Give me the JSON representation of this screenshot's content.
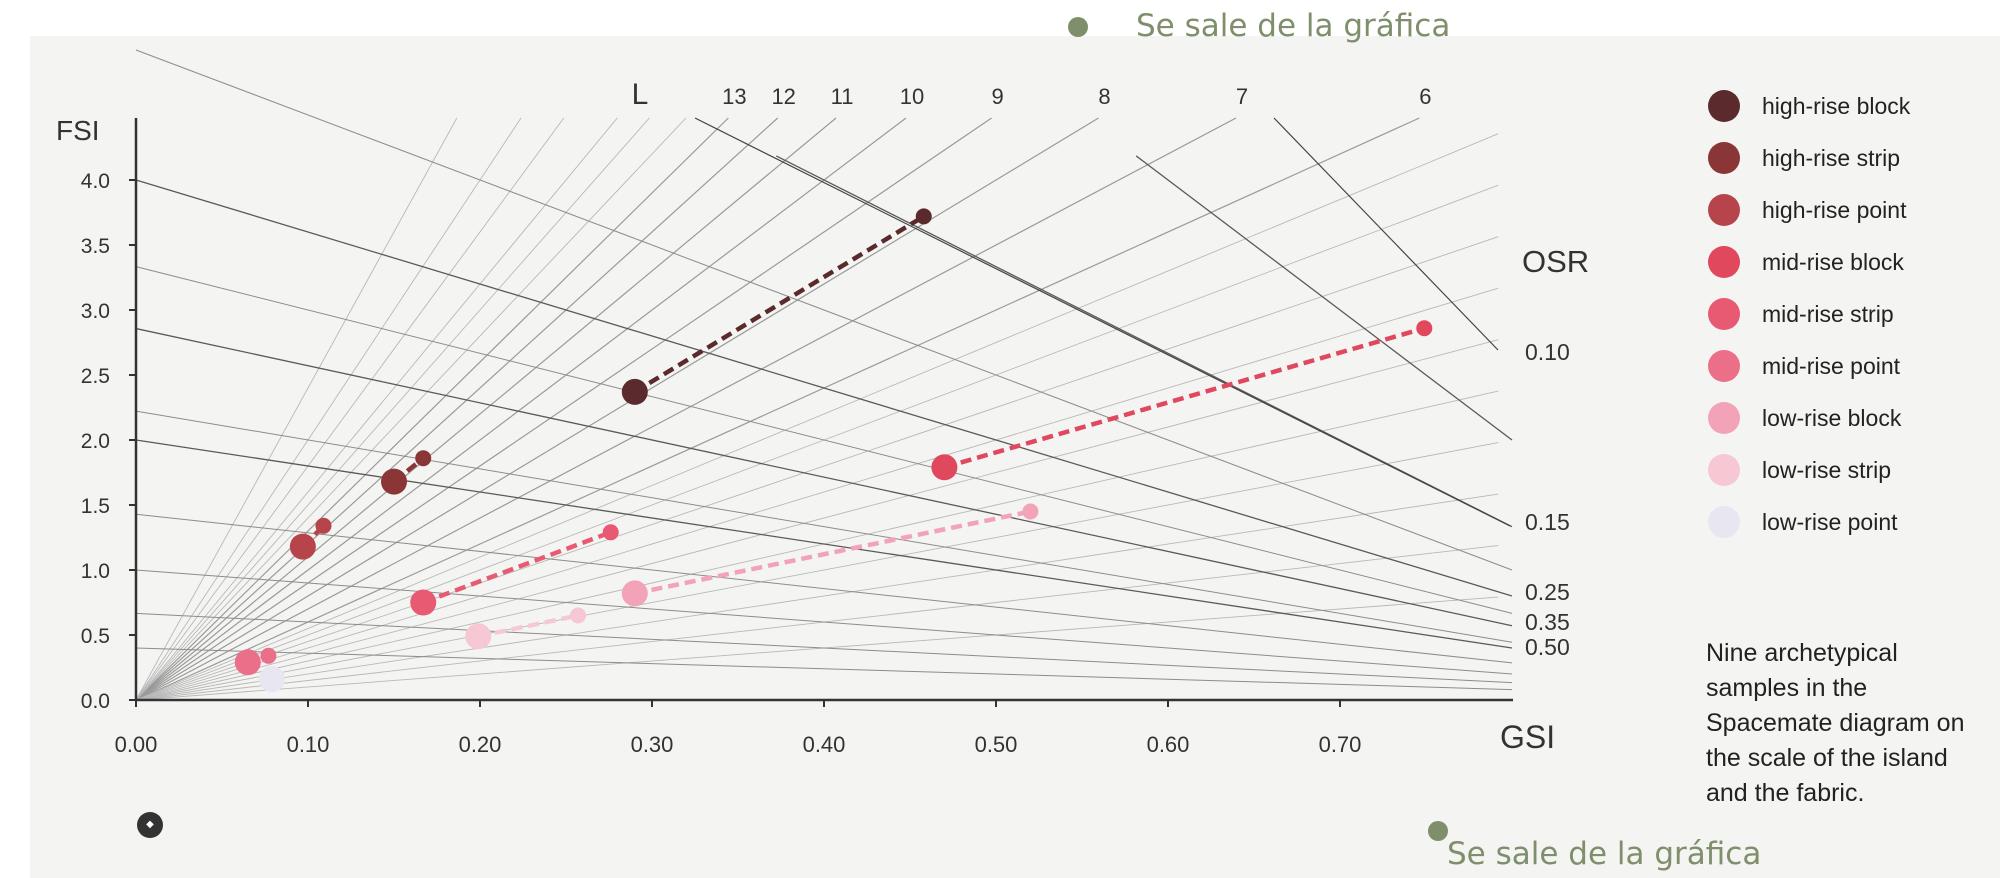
{
  "annotations": {
    "top_note": "Se sale de la gráfica",
    "bottom_note": "Se sale de la gráfica"
  },
  "chart_data": {
    "type": "scatter",
    "title": "",
    "xlabel": "GSI",
    "ylabel": "FSI",
    "xlim": [
      0,
      0.8
    ],
    "ylim": [
      0,
      4.5
    ],
    "x_ticks": [
      "0.00",
      "0.10",
      "0.20",
      "0.30",
      "0.40",
      "0.50",
      "0.60",
      "0.70"
    ],
    "y_ticks": [
      "0.0",
      "0.5",
      "1.0",
      "1.5",
      "2.0",
      "2.5",
      "3.0",
      "3.5",
      "4.0"
    ],
    "L_label": "L",
    "L_lines": [
      {
        "label": "13",
        "value": 13
      },
      {
        "label": "12",
        "value": 12
      },
      {
        "label": "11",
        "value": 11
      },
      {
        "label": "10",
        "value": 10
      },
      {
        "label": "9",
        "value": 9
      },
      {
        "label": "8",
        "value": 8
      },
      {
        "label": "7",
        "value": 7
      },
      {
        "label": "6",
        "value": 6
      }
    ],
    "OSR_label": "OSR",
    "OSR_lines": [
      {
        "label": "0.10",
        "value": 0.1
      },
      {
        "label": "0.15",
        "value": 0.15
      },
      {
        "label": "0.25",
        "value": 0.25
      },
      {
        "label": "0.35",
        "value": 0.35
      },
      {
        "label": "0.50",
        "value": 0.5
      }
    ],
    "legend_position": "right",
    "series": [
      {
        "name": "high-rise block",
        "color": "#5a2a2c",
        "points": [
          {
            "x": 0.29,
            "y": 2.37,
            "size": "large"
          },
          {
            "x": 0.458,
            "y": 3.72,
            "size": "small"
          }
        ],
        "line": true
      },
      {
        "name": "high-rise strip",
        "color": "#8a3536",
        "points": [
          {
            "x": 0.15,
            "y": 1.68,
            "size": "large"
          },
          {
            "x": 0.167,
            "y": 1.86,
            "size": "small"
          }
        ],
        "line": true
      },
      {
        "name": "high-rise point",
        "color": "#b8444b",
        "points": [
          {
            "x": 0.097,
            "y": 1.18,
            "size": "large"
          },
          {
            "x": 0.109,
            "y": 1.34,
            "size": "small"
          }
        ],
        "line": true
      },
      {
        "name": "mid-rise block",
        "color": "#e0485e",
        "points": [
          {
            "x": 0.47,
            "y": 1.79,
            "size": "large"
          },
          {
            "x": 0.749,
            "y": 2.86,
            "size": "small"
          }
        ],
        "line": true
      },
      {
        "name": "mid-rise strip",
        "color": "#e85a72",
        "points": [
          {
            "x": 0.167,
            "y": 0.75,
            "size": "large"
          },
          {
            "x": 0.276,
            "y": 1.29,
            "size": "small"
          }
        ],
        "line": true
      },
      {
        "name": "mid-rise point",
        "color": "#ec6f8a",
        "points": [
          {
            "x": 0.065,
            "y": 0.29,
            "size": "large"
          },
          {
            "x": 0.077,
            "y": 0.34,
            "size": "small"
          }
        ],
        "line": true
      },
      {
        "name": "low-rise block",
        "color": "#f2a3b8",
        "points": [
          {
            "x": 0.29,
            "y": 0.82,
            "size": "large"
          },
          {
            "x": 0.52,
            "y": 1.45,
            "size": "small"
          }
        ],
        "line": true
      },
      {
        "name": "low-rise strip",
        "color": "#f6c8d4",
        "points": [
          {
            "x": 0.199,
            "y": 0.49,
            "size": "large"
          },
          {
            "x": 0.257,
            "y": 0.65,
            "size": "small"
          }
        ],
        "line": true
      },
      {
        "name": "low-rise point",
        "color": "#e8e6f0",
        "points": [
          {
            "x": 0.079,
            "y": 0.16,
            "size": "large"
          }
        ],
        "line": false
      }
    ]
  },
  "caption": "Nine archetypical samples in the Spacemate diagram on the scale of the island and the fabric."
}
